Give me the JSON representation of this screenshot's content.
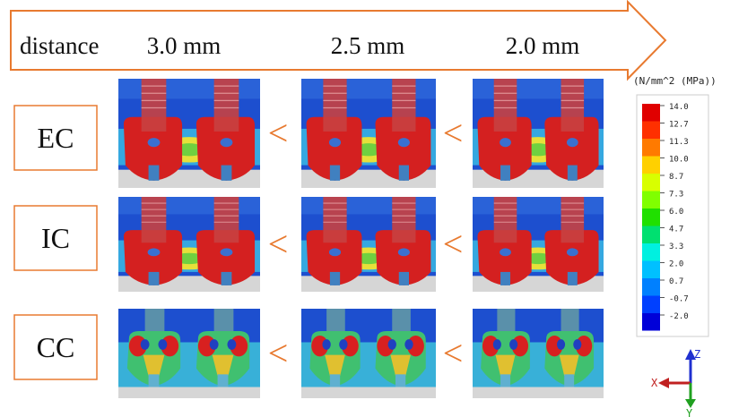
{
  "header": {
    "label": "distance",
    "columns": [
      "3.0 mm",
      "2.5 mm",
      "2.0 mm"
    ]
  },
  "rows": [
    {
      "label": "EC",
      "comparisons": [
        "<",
        "<"
      ]
    },
    {
      "label": "IC",
      "comparisons": [
        "<",
        "<"
      ]
    },
    {
      "label": "CC",
      "comparisons": [
        "<",
        "<"
      ]
    }
  ],
  "legend": {
    "unit": "(N/mm^2 (MPa))",
    "ticks": [
      "14.0",
      "12.7",
      "11.3",
      "10.0",
      "8.7",
      "7.3",
      "6.0",
      "4.7",
      "3.3",
      "2.0",
      "0.7",
      "-0.7",
      "-2.0"
    ]
  },
  "axes": {
    "z": "Z",
    "x": "X",
    "y": "Y"
  }
}
